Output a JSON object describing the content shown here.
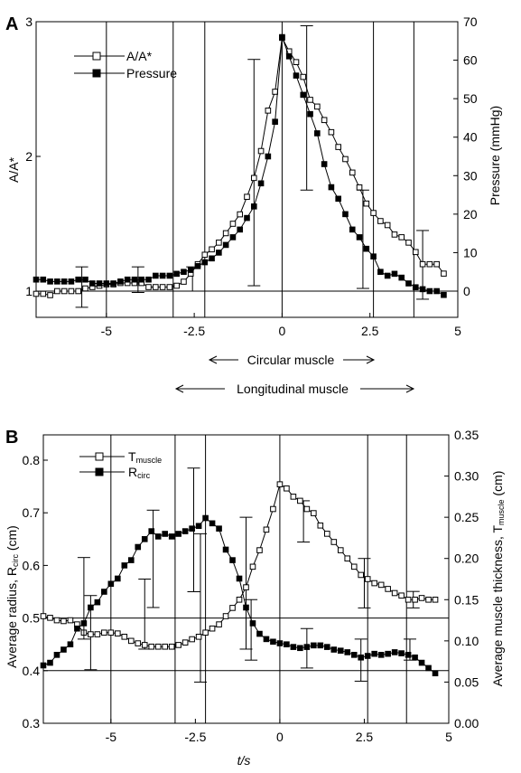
{
  "chart_data": [
    {
      "panel": "A",
      "type": "line",
      "xlim": [
        -7,
        5
      ],
      "x_ticks": [
        -5,
        -2.5,
        0,
        2.5,
        5
      ],
      "x_tick_labels": [
        "-5",
        "-2.5",
        "0",
        "2.5",
        "5"
      ],
      "y_left": {
        "label": "A/A*",
        "lim": [
          0.98,
          3
        ],
        "ticks": [
          1,
          2,
          3
        ],
        "tick_labels": [
          "1",
          "2",
          "3"
        ]
      },
      "y_right": {
        "label": "Pressure (mmHg)",
        "lim": [
          -7,
          70
        ],
        "ticks": [
          0,
          10,
          20,
          30,
          40,
          50,
          60,
          70
        ],
        "tick_labels": [
          "0",
          "10",
          "20",
          "30",
          "40",
          "50",
          "60",
          "70"
        ]
      },
      "reference_line": {
        "axis": "left",
        "y": 1
      },
      "vertical_markers": [
        -5,
        -3.1,
        -2.2,
        0,
        2.6,
        3.75
      ],
      "legend": [
        "A/A*",
        "Pressure"
      ],
      "series": [
        {
          "name": "A/A*",
          "axis": "left",
          "marker": "open-square",
          "x": [
            -7,
            -6.8,
            -6.6,
            -6.4,
            -6.2,
            -6,
            -5.8,
            -5.6,
            -5.4,
            -5.2,
            -5,
            -4.8,
            -4.6,
            -4.4,
            -4.2,
            -4,
            -3.8,
            -3.6,
            -3.4,
            -3.2,
            -3,
            -2.8,
            -2.6,
            -2.4,
            -2.2,
            -2,
            -1.8,
            -1.6,
            -1.4,
            -1.2,
            -1,
            -0.8,
            -0.6,
            -0.4,
            -0.2,
            0,
            0.2,
            0.4,
            0.6,
            0.8,
            1,
            1.2,
            1.4,
            1.6,
            1.8,
            2,
            2.2,
            2.4,
            2.6,
            2.8,
            3,
            3.2,
            3.4,
            3.6,
            3.8,
            4,
            4.2,
            4.4,
            4.6
          ],
          "y": [
            0.98,
            0.98,
            0.97,
            1.0,
            1.0,
            1.0,
            1.0,
            1.02,
            1.03,
            1.04,
            1.05,
            1.05,
            1.06,
            1.06,
            1.06,
            1.06,
            1.03,
            1.03,
            1.03,
            1.03,
            1.04,
            1.07,
            1.13,
            1.2,
            1.27,
            1.31,
            1.36,
            1.43,
            1.5,
            1.57,
            1.7,
            1.84,
            2.04,
            2.34,
            2.48,
            2.88,
            2.78,
            2.7,
            2.59,
            2.42,
            2.37,
            2.27,
            2.18,
            2.07,
            1.98,
            1.88,
            1.77,
            1.65,
            1.58,
            1.52,
            1.49,
            1.42,
            1.4,
            1.36,
            1.29,
            1.2,
            1.2,
            1.2,
            1.13
          ],
          "error_bars": [
            {
              "x": -5.7,
              "low": 0.88,
              "high": 1.18
            },
            {
              "x": -4.1,
              "low": 0.99,
              "high": 1.18
            },
            {
              "x": -2.55,
              "low": 1.0,
              "high": 1.18
            },
            {
              "x": -0.8,
              "low": 1.04,
              "high": 2.72
            },
            {
              "x": 0.7,
              "low": 1.75,
              "high": 2.97
            },
            {
              "x": 2.3,
              "low": 1.02,
              "high": 1.75
            },
            {
              "x": 4.0,
              "low": 0.94,
              "high": 1.45
            }
          ]
        },
        {
          "name": "Pressure",
          "axis": "right",
          "marker": "filled-square",
          "x": [
            -7,
            -6.8,
            -6.6,
            -6.4,
            -6.2,
            -6,
            -5.8,
            -5.6,
            -5.4,
            -5.2,
            -5,
            -4.8,
            -4.6,
            -4.4,
            -4.2,
            -4,
            -3.8,
            -3.6,
            -3.4,
            -3.2,
            -3,
            -2.8,
            -2.6,
            -2.4,
            -2.2,
            -2,
            -1.8,
            -1.6,
            -1.4,
            -1.2,
            -1,
            -0.8,
            -0.6,
            -0.4,
            -0.2,
            0,
            0.2,
            0.4,
            0.6,
            0.8,
            1,
            1.2,
            1.4,
            1.6,
            1.8,
            2,
            2.2,
            2.4,
            2.6,
            2.8,
            3,
            3.2,
            3.4,
            3.6,
            3.8,
            4,
            4.2,
            4.4,
            4.6
          ],
          "y": [
            3,
            3,
            2.5,
            2.5,
            2.5,
            2.5,
            3,
            3,
            2,
            2,
            2,
            2,
            2.5,
            3,
            3,
            3,
            3,
            4,
            4,
            4,
            4.5,
            5,
            5.5,
            6.5,
            7.5,
            8.5,
            10,
            12,
            14,
            16,
            19,
            22,
            28,
            35,
            44,
            66,
            61,
            56,
            51,
            46,
            41,
            33,
            27,
            24,
            20,
            16,
            14,
            11,
            9,
            5,
            4,
            4.5,
            3.5,
            2,
            1,
            0.5,
            0,
            0,
            -1
          ]
        }
      ]
    },
    {
      "panel": "B",
      "type": "line",
      "xlim": [
        -7,
        5
      ],
      "x_ticks": [
        -5,
        -2.5,
        0,
        2.5,
        5
      ],
      "x_tick_labels": [
        "-5",
        "-2.5",
        "0",
        "2.5",
        "5"
      ],
      "y_left": {
        "label": "Average radius, Rcirc (cm)",
        "lim": [
          0.3,
          0.85
        ],
        "ticks": [
          0.3,
          0.4,
          0.5,
          0.6,
          0.7,
          0.8
        ],
        "tick_labels": [
          "0.3",
          "0.4",
          "0.5",
          "0.6",
          "0.7",
          "0.8"
        ]
      },
      "y_right": {
        "label": "Average muscle thickness, Tmuscle (cm)",
        "lim": [
          0,
          0.35
        ],
        "ticks": [
          0,
          0.05,
          0.1,
          0.15,
          0.2,
          0.25,
          0.3,
          0.35
        ],
        "tick_labels": [
          "0.00",
          "0.05",
          "0.10",
          "0.15",
          "0.20",
          "0.25",
          "0.30",
          "0.35"
        ]
      },
      "reference_lines": [
        {
          "axis": "left",
          "y": 0.4
        },
        {
          "axis": "left",
          "y": 0.5
        }
      ],
      "vertical_markers": [
        -5,
        -3.1,
        -2.2,
        0,
        2.6,
        3.75
      ],
      "legend": [
        "Tmuscle",
        "Rcirc"
      ],
      "series": [
        {
          "name": "Tmuscle",
          "axis": "right",
          "marker": "open-square",
          "x": [
            -7,
            -6.8,
            -6.6,
            -6.4,
            -6.2,
            -6,
            -5.8,
            -5.6,
            -5.4,
            -5.2,
            -5,
            -4.8,
            -4.6,
            -4.4,
            -4.2,
            -4,
            -3.8,
            -3.6,
            -3.4,
            -3.2,
            -3,
            -2.8,
            -2.6,
            -2.4,
            -2.2,
            -2,
            -1.8,
            -1.6,
            -1.4,
            -1.2,
            -1,
            -0.8,
            -0.6,
            -0.4,
            -0.2,
            0,
            0.2,
            0.4,
            0.6,
            0.8,
            1,
            1.2,
            1.4,
            1.6,
            1.8,
            2,
            2.2,
            2.4,
            2.6,
            2.8,
            3,
            3.2,
            3.4,
            3.6,
            3.8,
            4,
            4.2,
            4.4,
            4.6
          ],
          "y": [
            0.13,
            0.128,
            0.125,
            0.124,
            0.125,
            0.12,
            0.11,
            0.108,
            0.108,
            0.11,
            0.11,
            0.109,
            0.105,
            0.1,
            0.097,
            0.095,
            0.093,
            0.093,
            0.093,
            0.093,
            0.095,
            0.098,
            0.102,
            0.105,
            0.11,
            0.115,
            0.12,
            0.13,
            0.14,
            0.15,
            0.165,
            0.19,
            0.21,
            0.235,
            0.26,
            0.29,
            0.285,
            0.275,
            0.27,
            0.26,
            0.255,
            0.24,
            0.23,
            0.22,
            0.21,
            0.2,
            0.19,
            0.18,
            0.175,
            0.17,
            0.168,
            0.163,
            0.158,
            0.155,
            0.15,
            0.15,
            0.152,
            0.15,
            0.15
          ],
          "error_bars": [
            {
              "x": -5.6,
              "low": 0.065,
              "high": 0.155
            },
            {
              "x": -4.0,
              "low": 0.09,
              "high": 0.175
            },
            {
              "x": -2.35,
              "low": 0.05,
              "high": 0.23
            },
            {
              "x": -1.0,
              "low": 0.09,
              "high": 0.25
            },
            {
              "x": 0.7,
              "low": 0.22,
              "high": 0.27
            },
            {
              "x": 2.5,
              "low": 0.14,
              "high": 0.2
            },
            {
              "x": 3.95,
              "low": 0.14,
              "high": 0.16
            }
          ]
        },
        {
          "name": "Rcirc",
          "axis": "left",
          "marker": "filled-square",
          "x": [
            -7,
            -6.8,
            -6.6,
            -6.4,
            -6.2,
            -6,
            -5.8,
            -5.6,
            -5.4,
            -5.2,
            -5,
            -4.8,
            -4.6,
            -4.4,
            -4.2,
            -4,
            -3.8,
            -3.6,
            -3.4,
            -3.2,
            -3,
            -2.8,
            -2.6,
            -2.4,
            -2.2,
            -2,
            -1.8,
            -1.6,
            -1.4,
            -1.2,
            -1,
            -0.8,
            -0.6,
            -0.4,
            -0.2,
            0,
            0.2,
            0.4,
            0.6,
            0.8,
            1,
            1.2,
            1.4,
            1.6,
            1.8,
            2,
            2.2,
            2.4,
            2.6,
            2.8,
            3,
            3.2,
            3.4,
            3.6,
            3.8,
            4,
            4.2,
            4.4,
            4.6
          ],
          "y": [
            0.41,
            0.415,
            0.43,
            0.44,
            0.45,
            0.48,
            0.49,
            0.52,
            0.53,
            0.55,
            0.565,
            0.575,
            0.6,
            0.61,
            0.635,
            0.65,
            0.665,
            0.655,
            0.66,
            0.655,
            0.66,
            0.665,
            0.67,
            0.675,
            0.69,
            0.68,
            0.67,
            0.63,
            0.61,
            0.575,
            0.52,
            0.49,
            0.47,
            0.46,
            0.455,
            0.452,
            0.45,
            0.445,
            0.443,
            0.445,
            0.448,
            0.448,
            0.445,
            0.44,
            0.438,
            0.435,
            0.43,
            0.425,
            0.428,
            0.432,
            0.43,
            0.432,
            0.435,
            0.433,
            0.43,
            0.425,
            0.415,
            0.405,
            0.395
          ],
          "error_bars": [
            {
              "x": -5.8,
              "low": 0.46,
              "high": 0.615
            },
            {
              "x": -3.75,
              "low": 0.52,
              "high": 0.705
            },
            {
              "x": -2.55,
              "low": 0.55,
              "high": 0.785
            },
            {
              "x": -0.85,
              "low": 0.42,
              "high": 0.535
            },
            {
              "x": 0.8,
              "low": 0.405,
              "high": 0.48
            },
            {
              "x": 2.4,
              "low": 0.38,
              "high": 0.46
            },
            {
              "x": 3.85,
              "low": 0.42,
              "high": 0.46
            }
          ]
        }
      ]
    }
  ],
  "figure": {
    "panel_a_letter": "A",
    "panel_b_letter": "B",
    "xlabel": "t/s",
    "annotations": {
      "circular_muscle": "Circular muscle",
      "longitudinal_muscle": "Longitudinal muscle"
    },
    "panel_a": {
      "ylabel_left": "A/A*",
      "ylabel_right": "Pressure (mmHg)",
      "legend_a": "A/A*",
      "legend_b": "Pressure"
    },
    "panel_b": {
      "ylabel_left": "Average radius, Rcirc (cm)",
      "ylabel_right": "Average muscle thickness, Tmuscle (cm)",
      "legend_t": "Tmuscle",
      "legend_r": "Rcirc"
    }
  }
}
